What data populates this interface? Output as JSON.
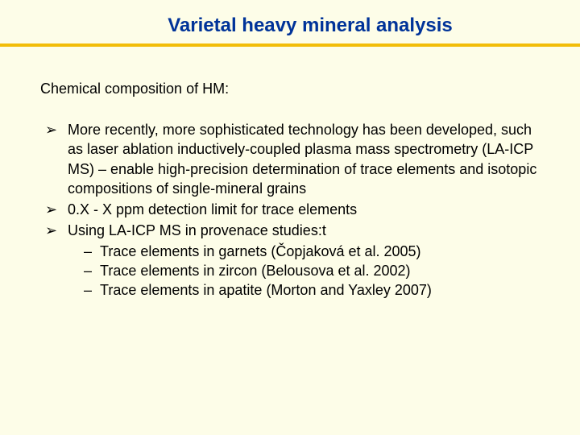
{
  "colors": {
    "background": "#fdfde8",
    "title": "#003399",
    "underline": "#f2bd08",
    "body_text": "#000000",
    "bullet_marker": "#000000"
  },
  "typography": {
    "title_fontsize": 24,
    "subtitle_fontsize": 18,
    "body_fontsize": 18,
    "font_family": "Comic Sans MS"
  },
  "title": "Varietal heavy mineral analysis",
  "subtitle": "Chemical composition of HM:",
  "bullets": [
    {
      "text": "More recently, more sophisticated technology has been developed, such as laser ablation inductively-coupled plasma mass spectrometry (LA-ICP MS) – enable high-precision determination of trace elements and isotopic compositions of single-mineral grains"
    },
    {
      "text": "0.X - X ppm detection limit for trace elements"
    },
    {
      "text": "Using LA-ICP MS in provenace studies:t",
      "sub": [
        "Trace elements in garnets (Čopjaková et al. 2005)",
        "Trace elements in zircon (Belousova et al. 2002)",
        "Trace elements in apatite (Morton and Yaxley 2007)"
      ]
    }
  ]
}
